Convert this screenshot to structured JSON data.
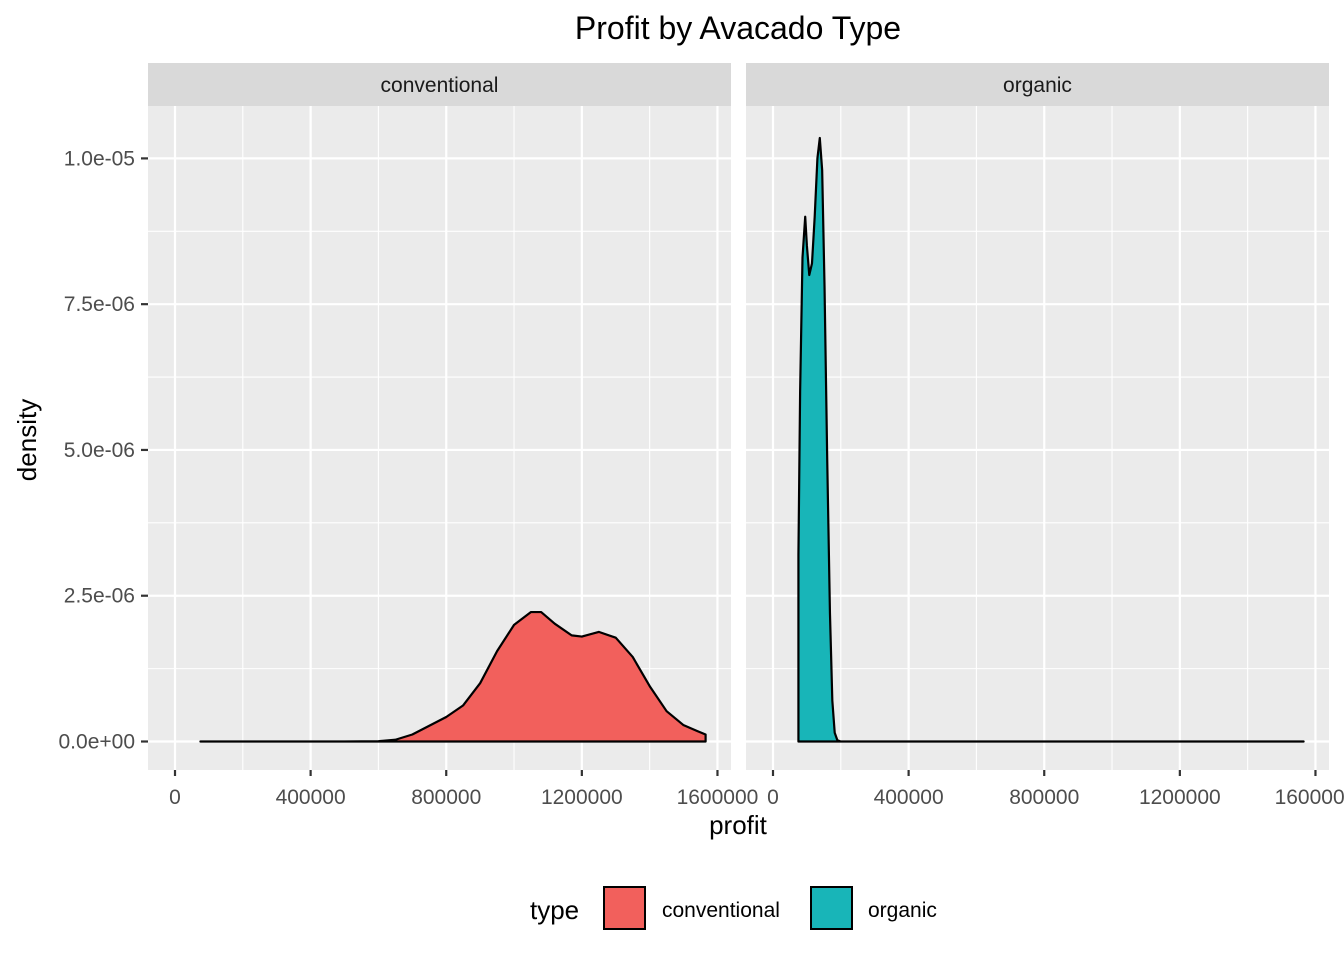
{
  "chart_data": {
    "type": "area",
    "title": "Profit by Avacado Type",
    "xlabel": "profit",
    "ylabel": "density",
    "xlim": [
      0,
      1600000
    ],
    "ylim": [
      0,
      1.1e-05
    ],
    "x_ticks": [
      0,
      400000,
      800000,
      1200000,
      1600000
    ],
    "x_tick_labels": [
      "0",
      "400000",
      "800000",
      "1200000",
      "1600000"
    ],
    "y_ticks": [
      0,
      2.5e-06,
      5e-06,
      7.5e-06,
      1e-05
    ],
    "y_tick_labels": [
      "0.0e+00",
      "2.5e-06",
      "5.0e-06",
      "7.5e-06",
      "1.0e-05"
    ],
    "grid": true,
    "legend": {
      "title": "type",
      "position": "bottom",
      "entries": [
        {
          "label": "conventional",
          "color": "#F8766D"
        },
        {
          "label": "organic",
          "color": "#00BFC4"
        }
      ]
    },
    "panels": [
      {
        "strip": "conventional",
        "fill": "#F2605C",
        "points": [
          [
            75000,
            0
          ],
          [
            500000,
            0
          ],
          [
            600000,
            5e-09
          ],
          [
            650000,
            3e-08
          ],
          [
            700000,
            1.2e-07
          ],
          [
            750000,
            2.7e-07
          ],
          [
            800000,
            4.2e-07
          ],
          [
            850000,
            6.2e-07
          ],
          [
            900000,
            1e-06
          ],
          [
            950000,
            1.55e-06
          ],
          [
            1000000,
            2e-06
          ],
          [
            1050000,
            2.22e-06
          ],
          [
            1080000,
            2.22e-06
          ],
          [
            1120000,
            2.02e-06
          ],
          [
            1170000,
            1.82e-06
          ],
          [
            1200000,
            1.8e-06
          ],
          [
            1250000,
            1.88e-06
          ],
          [
            1300000,
            1.78e-06
          ],
          [
            1350000,
            1.45e-06
          ],
          [
            1400000,
            9.5e-07
          ],
          [
            1450000,
            5.2e-07
          ],
          [
            1500000,
            2.8e-07
          ],
          [
            1540000,
            1.8e-07
          ],
          [
            1565000,
            1.2e-07
          ],
          [
            1565000,
            0
          ]
        ]
      },
      {
        "strip": "organic",
        "fill": "#18B5B8",
        "points": [
          [
            75000,
            0
          ],
          [
            75000,
            3.2e-06
          ],
          [
            80000,
            6e-06
          ],
          [
            87000,
            8.3e-06
          ],
          [
            95000,
            9e-06
          ],
          [
            100000,
            8.5e-06
          ],
          [
            107000,
            8e-06
          ],
          [
            115000,
            8.2e-06
          ],
          [
            123000,
            9e-06
          ],
          [
            131000,
            1e-05
          ],
          [
            138000,
            1.035e-05
          ],
          [
            145000,
            9.8e-06
          ],
          [
            152000,
            7.8e-06
          ],
          [
            160000,
            4.8e-06
          ],
          [
            168000,
            2.2e-06
          ],
          [
            175000,
            7e-07
          ],
          [
            182000,
            1.5e-07
          ],
          [
            190000,
            2e-08
          ],
          [
            200000,
            0
          ],
          [
            1565000,
            0
          ]
        ]
      }
    ]
  }
}
